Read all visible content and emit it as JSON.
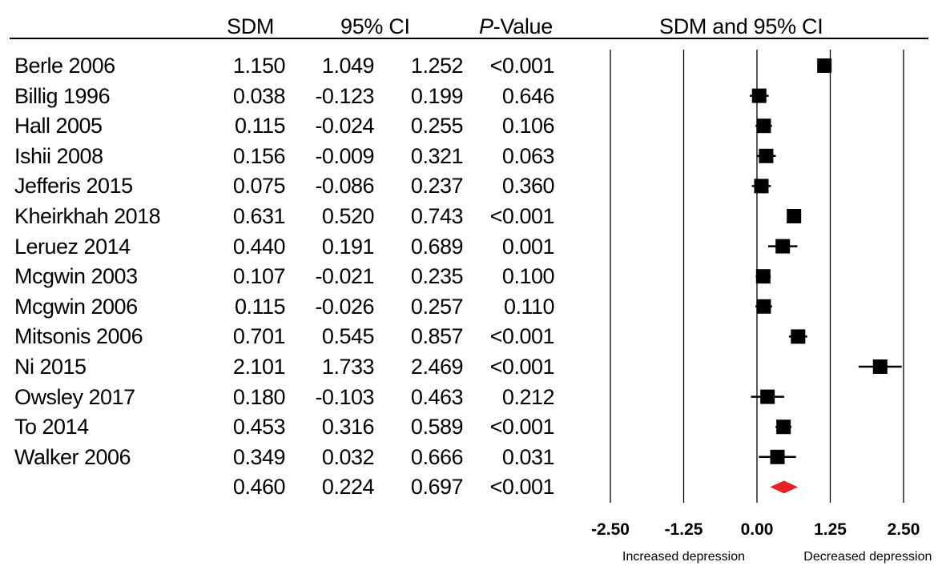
{
  "chart_data": {
    "type": "table",
    "columns": {
      "study": "",
      "sdm": "SDM",
      "ci": "95% CI",
      "p_prefix": "P",
      "p_suffix": "-Value",
      "plot": "SDM and 95% CI"
    },
    "rows": [
      {
        "study": "Berle 2006",
        "sdm": "1.150",
        "lower": "1.049",
        "upper": "1.252",
        "p": "<0.001"
      },
      {
        "study": "Billig 1996",
        "sdm": "0.038",
        "lower": "-0.123",
        "upper": "0.199",
        "p": "0.646"
      },
      {
        "study": "Hall 2005",
        "sdm": "0.115",
        "lower": "-0.024",
        "upper": "0.255",
        "p": "0.106"
      },
      {
        "study": "Ishii 2008",
        "sdm": "0.156",
        "lower": "-0.009",
        "upper": "0.321",
        "p": "0.063"
      },
      {
        "study": "Jefferis 2015",
        "sdm": "0.075",
        "lower": "-0.086",
        "upper": "0.237",
        "p": "0.360"
      },
      {
        "study": "Kheirkhah 2018",
        "sdm": "0.631",
        "lower": "0.520",
        "upper": "0.743",
        "p": "<0.001"
      },
      {
        "study": "Leruez 2014",
        "sdm": "0.440",
        "lower": "0.191",
        "upper": "0.689",
        "p": "0.001"
      },
      {
        "study": "Mcgwin 2003",
        "sdm": "0.107",
        "lower": "-0.021",
        "upper": "0.235",
        "p": "0.100"
      },
      {
        "study": "Mcgwin 2006",
        "sdm": "0.115",
        "lower": "-0.026",
        "upper": "0.257",
        "p": "0.110"
      },
      {
        "study": "Mitsonis 2006",
        "sdm": "0.701",
        "lower": "0.545",
        "upper": "0.857",
        "p": "<0.001"
      },
      {
        "study": "Ni 2015",
        "sdm": "2.101",
        "lower": "1.733",
        "upper": "2.469",
        "p": "<0.001"
      },
      {
        "study": "Owsley 2017",
        "sdm": "0.180",
        "lower": "-0.103",
        "upper": "0.463",
        "p": "0.212"
      },
      {
        "study": "To 2014",
        "sdm": "0.453",
        "lower": "0.316",
        "upper": "0.589",
        "p": "<0.001"
      },
      {
        "study": "Walker 2006",
        "sdm": "0.349",
        "lower": "0.032",
        "upper": "0.666",
        "p": "0.031"
      }
    ],
    "pooled": {
      "study": "",
      "sdm": "0.460",
      "lower": "0.224",
      "upper": "0.697",
      "p": "<0.001"
    },
    "xlim": [
      -2.5,
      2.5
    ],
    "ticks": [
      -2.5,
      -1.25,
      0.0,
      1.25,
      2.5
    ],
    "tick_labels": [
      "-2.50",
      "-1.25",
      "0.00",
      "1.25",
      "2.50"
    ],
    "direction_labels": {
      "left": "Increased depression",
      "right": "Decreased depression"
    },
    "grid": true,
    "colors": {
      "study_marker": "#000000",
      "pooled_marker": "#e8202a",
      "gridline": "#000000"
    }
  }
}
